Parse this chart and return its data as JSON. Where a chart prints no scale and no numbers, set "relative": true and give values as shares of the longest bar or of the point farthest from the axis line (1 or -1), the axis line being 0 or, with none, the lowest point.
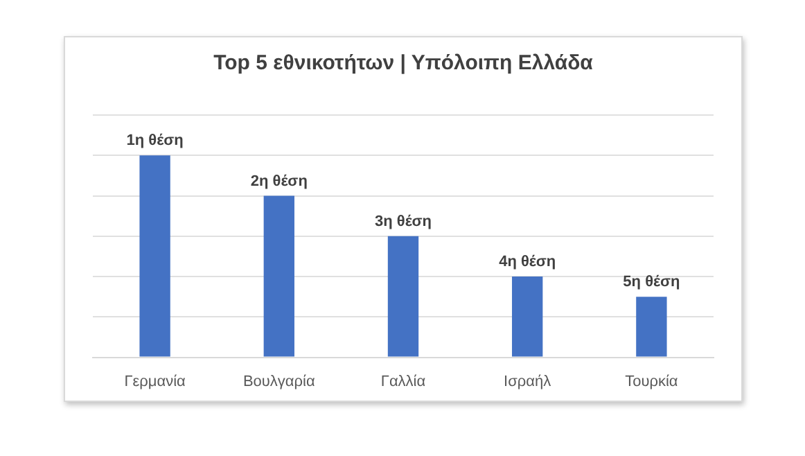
{
  "chart_data": {
    "type": "bar",
    "title": "Top 5 εθνικοτήτων | Υπόλοιπη Ελλάδα",
    "categories": [
      "Γερμανία",
      "Βουλγαρία",
      "Γαλλία",
      "Ισραήλ",
      "Τουρκία"
    ],
    "values": [
      1,
      0.8,
      0.6,
      0.4,
      0.3
    ],
    "color": "#4472c4",
    "relative": true,
    "annotations": [
      {
        "text": "1η θέση",
        "x": "Γερμανία",
        "y": 1
      },
      {
        "text": "2η θέση",
        "x": "Βουλγαρία",
        "y": 0.8
      },
      {
        "text": "3η θέση",
        "x": "Γαλλία",
        "y": 0.6
      },
      {
        "text": "4η θέση",
        "x": "Ισραήλ",
        "y": 0.4
      },
      {
        "text": "5η θέση",
        "x": "Τουρκία",
        "y": 0.3
      }
    ],
    "grid": "y",
    "legend": false
  }
}
